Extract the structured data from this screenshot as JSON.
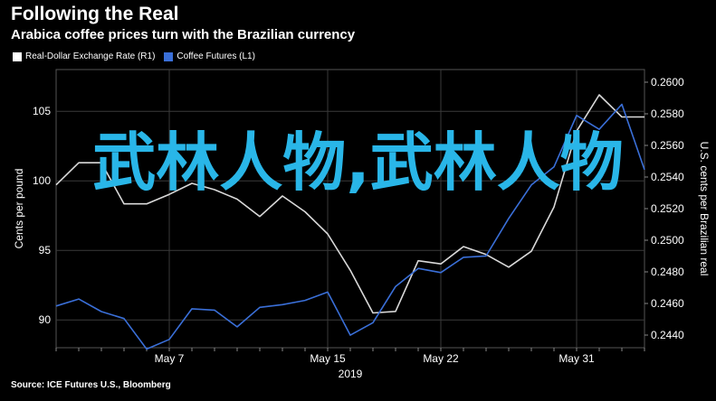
{
  "header": {
    "title": "Following the Real",
    "subtitle": "Arabica coffee prices turn with the Brazilian currency"
  },
  "source": "Source: ICE Futures U.S., Bloomberg",
  "overlay_text": "武林人物,武林人物",
  "colors": {
    "background": "#000000",
    "brl_line": "#d9d9d9",
    "coffee_line": "#3a6fd8",
    "grid": "#3a3a3a",
    "overlay": "#29b6e8"
  },
  "chart_data": {
    "type": "line",
    "title": "Following the Real",
    "subtitle": "Arabica coffee prices turn with the Brazilian currency",
    "x_tick_labels": [
      "May 7",
      "May 15",
      "May 22",
      "May 31"
    ],
    "x_tick_index": [
      5,
      12,
      17,
      23
    ],
    "x_year_label": "2019",
    "left_axis": {
      "label": "Cents per pound",
      "ticks": [
        90,
        95,
        100,
        105
      ],
      "ylim": [
        88,
        108
      ]
    },
    "right_axis": {
      "label": "U.S. cents per Brazilian real",
      "ticks": [
        "0.2440",
        "0.2460",
        "0.2480",
        "0.2500",
        "0.2520",
        "0.2540",
        "0.2560",
        "0.2580",
        "0.2600"
      ],
      "ylim": [
        0.2432,
        0.2608
      ]
    },
    "series": [
      {
        "name": "Real-Dollar Exchange Rate (R1)",
        "axis": "right",
        "color": "#d9d9d9",
        "x": [
          0,
          1,
          2,
          3,
          4,
          5,
          6,
          7,
          8,
          9,
          10,
          11,
          12,
          13,
          14,
          15,
          16,
          17,
          18,
          19,
          20,
          21,
          22,
          23,
          24,
          25,
          26
        ],
        "values": [
          0.2535,
          0.2549,
          0.2549,
          0.2523,
          0.2523,
          0.2529,
          0.2536,
          0.2532,
          0.2526,
          0.2515,
          0.2528,
          0.2518,
          0.2504,
          0.2481,
          0.2454,
          0.2455,
          0.2487,
          0.2485,
          0.2496,
          0.2491,
          0.2483,
          0.2493,
          0.2521,
          0.2569,
          0.2592,
          0.2578,
          0.2578
        ]
      },
      {
        "name": "Coffee Futures (L1)",
        "axis": "left",
        "color": "#3a6fd8",
        "x": [
          0,
          1,
          2,
          3,
          4,
          5,
          6,
          7,
          8,
          9,
          10,
          11,
          12,
          13,
          14,
          15,
          16,
          17,
          18,
          19,
          20,
          21,
          22,
          23,
          24,
          25,
          26
        ],
        "values": [
          91.0,
          91.5,
          90.6,
          90.1,
          87.9,
          88.6,
          90.8,
          90.7,
          89.5,
          90.9,
          91.1,
          91.4,
          92.0,
          88.9,
          89.8,
          92.4,
          93.7,
          93.4,
          94.5,
          94.6,
          97.3,
          99.7,
          101.0,
          104.7,
          103.7,
          105.5,
          100.8
        ]
      }
    ],
    "grid": true,
    "legend_position": "top-left"
  }
}
